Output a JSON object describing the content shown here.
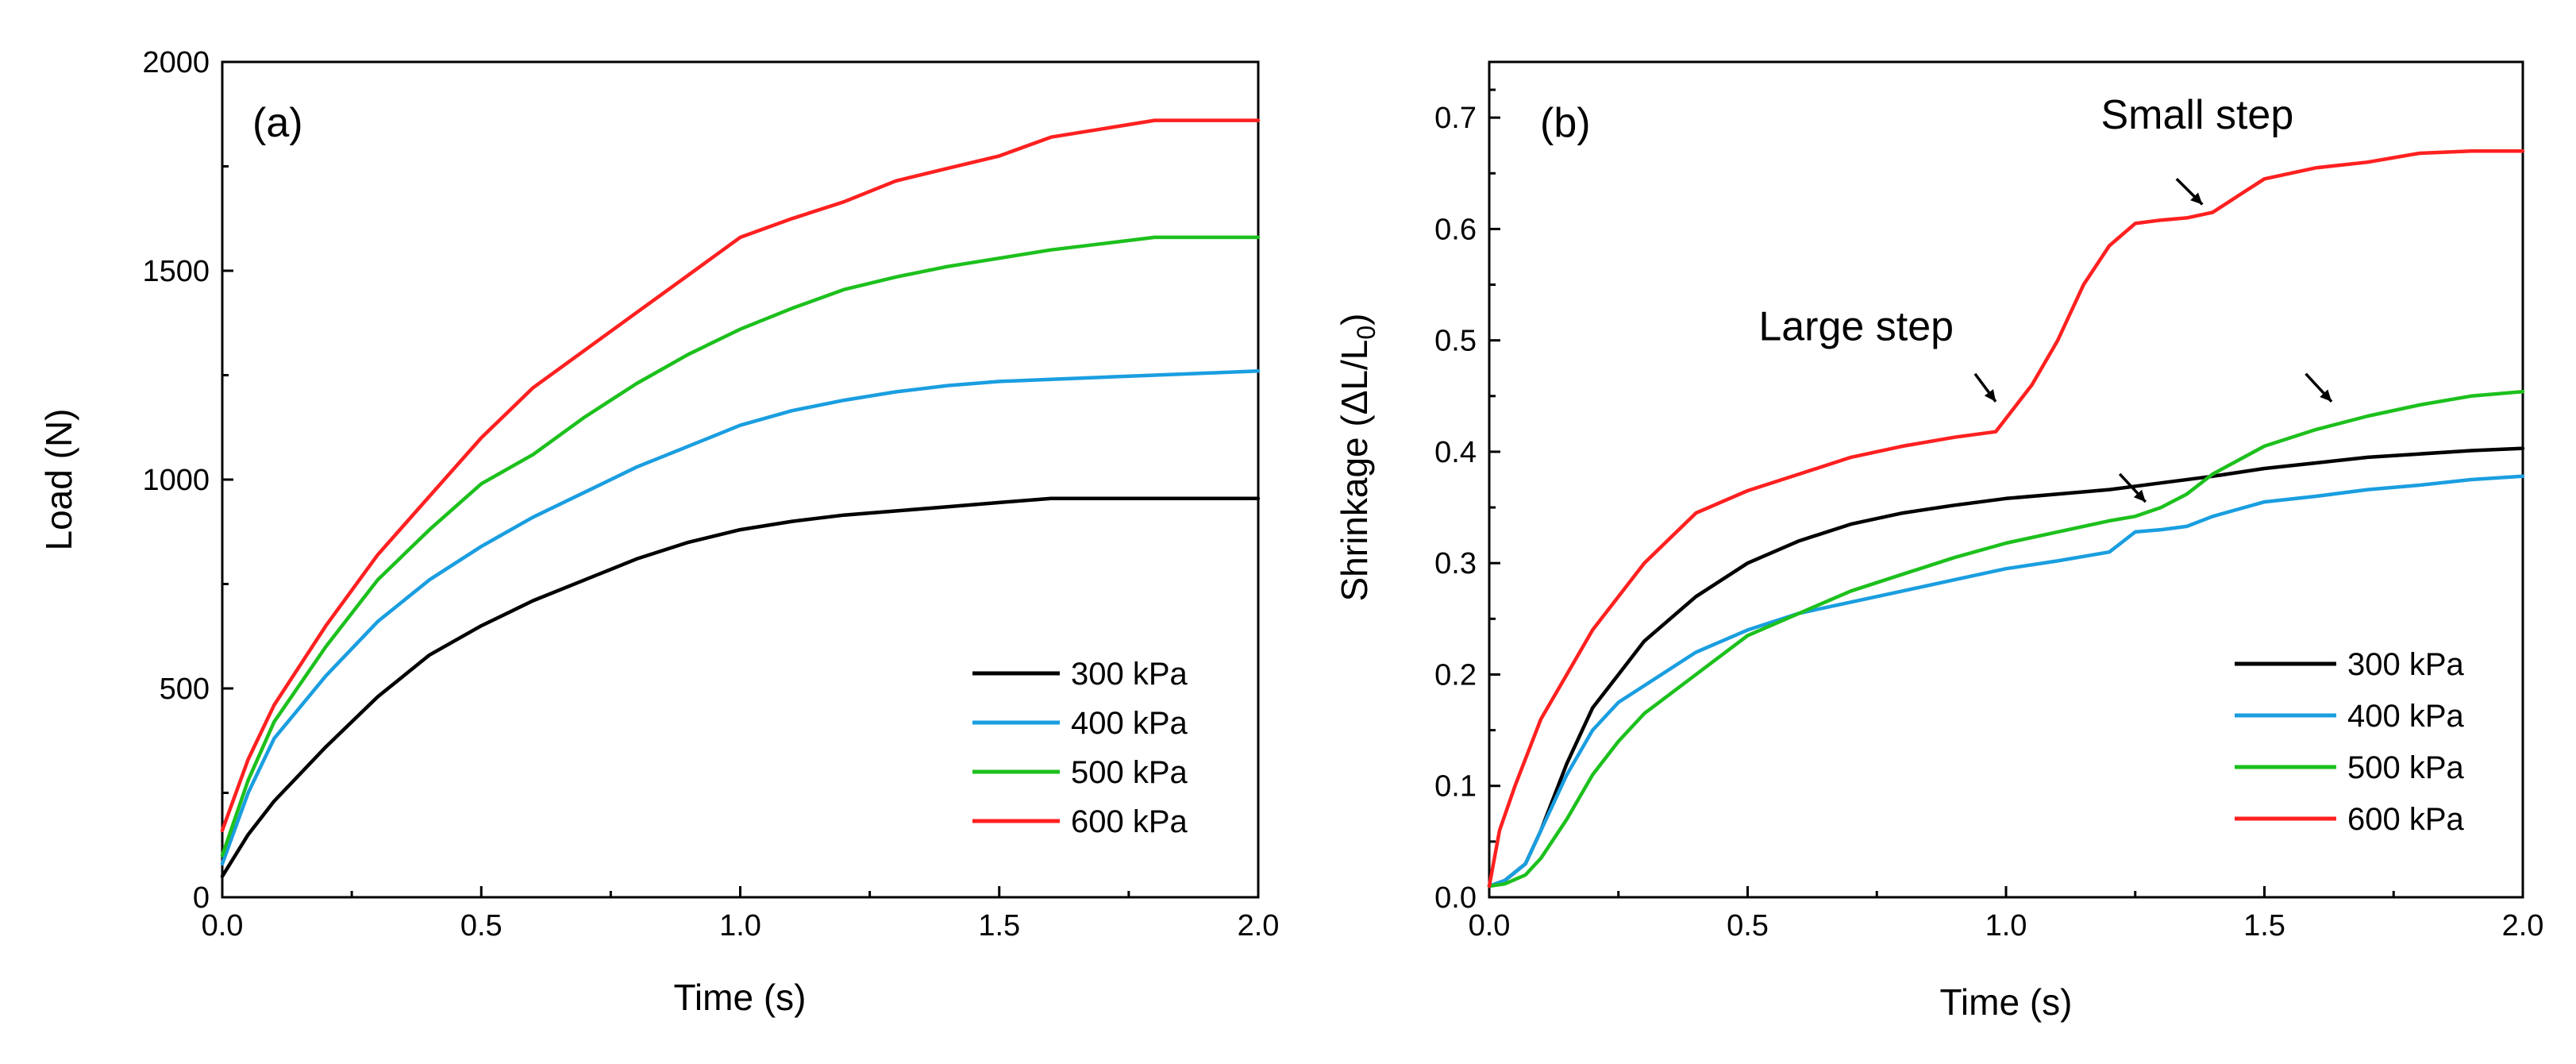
{
  "colors": {
    "300 kPa": "#000000",
    "400 kPa": "#1a9ee0",
    "500 kPa": "#1dc01d",
    "600 kPa": "#ff2020"
  },
  "chart_data": [
    {
      "type": "line",
      "panel_label": "(a)",
      "xlabel": "Time (s)",
      "ylabel": "Load (N)",
      "xlim": [
        0,
        2.0
      ],
      "ylim": [
        0,
        2000
      ],
      "xticks": [
        "0.0",
        "0.5",
        "1.0",
        "1.5",
        "2.0"
      ],
      "yticks": [
        "0",
        "500",
        "1000",
        "1500",
        "2000"
      ],
      "legend_position": "bottom-right",
      "series": [
        {
          "name": "300 kPa",
          "x": [
            0,
            0.05,
            0.1,
            0.2,
            0.3,
            0.4,
            0.5,
            0.6,
            0.7,
            0.8,
            0.9,
            1.0,
            1.1,
            1.2,
            1.3,
            1.4,
            1.5,
            1.6,
            1.7,
            1.8,
            1.9,
            2.0
          ],
          "y": [
            50,
            150,
            230,
            360,
            480,
            580,
            650,
            710,
            760,
            810,
            850,
            880,
            900,
            915,
            925,
            935,
            945,
            955,
            955,
            955,
            955,
            955
          ]
        },
        {
          "name": "400 kPa",
          "x": [
            0,
            0.05,
            0.1,
            0.2,
            0.3,
            0.4,
            0.5,
            0.6,
            0.7,
            0.8,
            0.9,
            1.0,
            1.1,
            1.2,
            1.3,
            1.4,
            1.5,
            1.6,
            1.7,
            1.8,
            1.9,
            2.0
          ],
          "y": [
            80,
            250,
            380,
            530,
            660,
            760,
            840,
            910,
            970,
            1030,
            1080,
            1130,
            1165,
            1190,
            1210,
            1225,
            1235,
            1240,
            1245,
            1250,
            1255,
            1260
          ]
        },
        {
          "name": "500 kPa",
          "x": [
            0,
            0.05,
            0.1,
            0.2,
            0.3,
            0.4,
            0.5,
            0.6,
            0.7,
            0.8,
            0.9,
            1.0,
            1.1,
            1.2,
            1.3,
            1.4,
            1.5,
            1.6,
            1.7,
            1.8,
            1.9,
            2.0
          ],
          "y": [
            100,
            280,
            420,
            600,
            760,
            880,
            990,
            1060,
            1150,
            1230,
            1300,
            1360,
            1410,
            1455,
            1485,
            1510,
            1530,
            1550,
            1565,
            1580,
            1580,
            1580
          ]
        },
        {
          "name": "600 kPa",
          "x": [
            0,
            0.05,
            0.1,
            0.2,
            0.3,
            0.4,
            0.5,
            0.6,
            0.7,
            0.8,
            0.9,
            1.0,
            1.1,
            1.2,
            1.3,
            1.4,
            1.5,
            1.6,
            1.7,
            1.8,
            1.9,
            2.0
          ],
          "y": [
            160,
            330,
            460,
            650,
            820,
            960,
            1100,
            1220,
            1310,
            1400,
            1490,
            1580,
            1625,
            1665,
            1715,
            1745,
            1775,
            1820,
            1840,
            1860,
            1860,
            1860
          ]
        }
      ]
    },
    {
      "type": "line",
      "panel_label": "(b)",
      "xlabel": "Time (s)",
      "ylabel": "Shrinkage (ΔL/L₀)",
      "xlim": [
        0,
        2.0
      ],
      "ylim": [
        0,
        0.75
      ],
      "xticks": [
        "0.0",
        "0.5",
        "1.0",
        "1.5",
        "2.0"
      ],
      "yticks": [
        "0.0",
        "0.1",
        "0.2",
        "0.3",
        "0.4",
        "0.5",
        "0.6",
        "0.7"
      ],
      "legend_position": "bottom-right",
      "annotations": [
        {
          "text": "Small step",
          "x": 1.37,
          "y": 0.69,
          "arrow_from": [
            1.33,
            0.645
          ],
          "arrow_to": [
            1.38,
            0.622
          ]
        },
        {
          "text": "Large step",
          "x": 0.71,
          "y": 0.5,
          "arrow_from": [
            0.94,
            0.47
          ],
          "arrow_to": [
            0.98,
            0.445
          ]
        },
        {
          "text": "",
          "arrow_from": [
            1.22,
            0.38
          ],
          "arrow_to": [
            1.27,
            0.355
          ]
        },
        {
          "text": "",
          "arrow_from": [
            1.58,
            0.47
          ],
          "arrow_to": [
            1.63,
            0.445
          ]
        }
      ],
      "series": [
        {
          "name": "300 kPa",
          "x": [
            0,
            0.03,
            0.07,
            0.1,
            0.15,
            0.2,
            0.25,
            0.3,
            0.4,
            0.5,
            0.6,
            0.7,
            0.8,
            0.9,
            1.0,
            1.1,
            1.2,
            1.3,
            1.4,
            1.5,
            1.6,
            1.7,
            1.8,
            1.9,
            2.0
          ],
          "y": [
            0.01,
            0.015,
            0.03,
            0.06,
            0.12,
            0.17,
            0.2,
            0.23,
            0.27,
            0.3,
            0.32,
            0.335,
            0.345,
            0.352,
            0.358,
            0.362,
            0.366,
            0.372,
            0.378,
            0.385,
            0.39,
            0.395,
            0.398,
            0.401,
            0.403
          ]
        },
        {
          "name": "400 kPa",
          "x": [
            0,
            0.03,
            0.07,
            0.1,
            0.15,
            0.2,
            0.25,
            0.3,
            0.4,
            0.5,
            0.6,
            0.7,
            0.8,
            0.9,
            1.0,
            1.1,
            1.2,
            1.25,
            1.3,
            1.35,
            1.4,
            1.5,
            1.6,
            1.7,
            1.8,
            1.9,
            2.0
          ],
          "y": [
            0.01,
            0.015,
            0.03,
            0.06,
            0.11,
            0.15,
            0.175,
            0.19,
            0.22,
            0.24,
            0.255,
            0.265,
            0.275,
            0.285,
            0.295,
            0.302,
            0.31,
            0.328,
            0.33,
            0.333,
            0.342,
            0.355,
            0.36,
            0.366,
            0.37,
            0.375,
            0.378
          ]
        },
        {
          "name": "500 kPa",
          "x": [
            0,
            0.03,
            0.07,
            0.1,
            0.15,
            0.2,
            0.25,
            0.3,
            0.4,
            0.5,
            0.6,
            0.7,
            0.8,
            0.9,
            1.0,
            1.1,
            1.2,
            1.25,
            1.3,
            1.35,
            1.4,
            1.5,
            1.6,
            1.7,
            1.8,
            1.9,
            2.0
          ],
          "y": [
            0.01,
            0.012,
            0.02,
            0.035,
            0.07,
            0.11,
            0.14,
            0.165,
            0.2,
            0.235,
            0.255,
            0.275,
            0.29,
            0.305,
            0.318,
            0.328,
            0.338,
            0.342,
            0.35,
            0.362,
            0.38,
            0.405,
            0.42,
            0.432,
            0.442,
            0.45,
            0.454
          ]
        },
        {
          "name": "600 kPa",
          "x": [
            0,
            0.02,
            0.05,
            0.1,
            0.15,
            0.2,
            0.3,
            0.4,
            0.5,
            0.6,
            0.7,
            0.8,
            0.9,
            0.98,
            1.0,
            1.05,
            1.1,
            1.15,
            1.2,
            1.25,
            1.3,
            1.35,
            1.4,
            1.45,
            1.5,
            1.6,
            1.7,
            1.8,
            1.9,
            2.0
          ],
          "y": [
            0.01,
            0.06,
            0.1,
            0.16,
            0.2,
            0.24,
            0.3,
            0.345,
            0.365,
            0.38,
            0.395,
            0.405,
            0.413,
            0.418,
            0.43,
            0.46,
            0.5,
            0.55,
            0.585,
            0.605,
            0.608,
            0.61,
            0.615,
            0.63,
            0.645,
            0.655,
            0.66,
            0.668,
            0.67,
            0.67
          ]
        }
      ]
    }
  ]
}
